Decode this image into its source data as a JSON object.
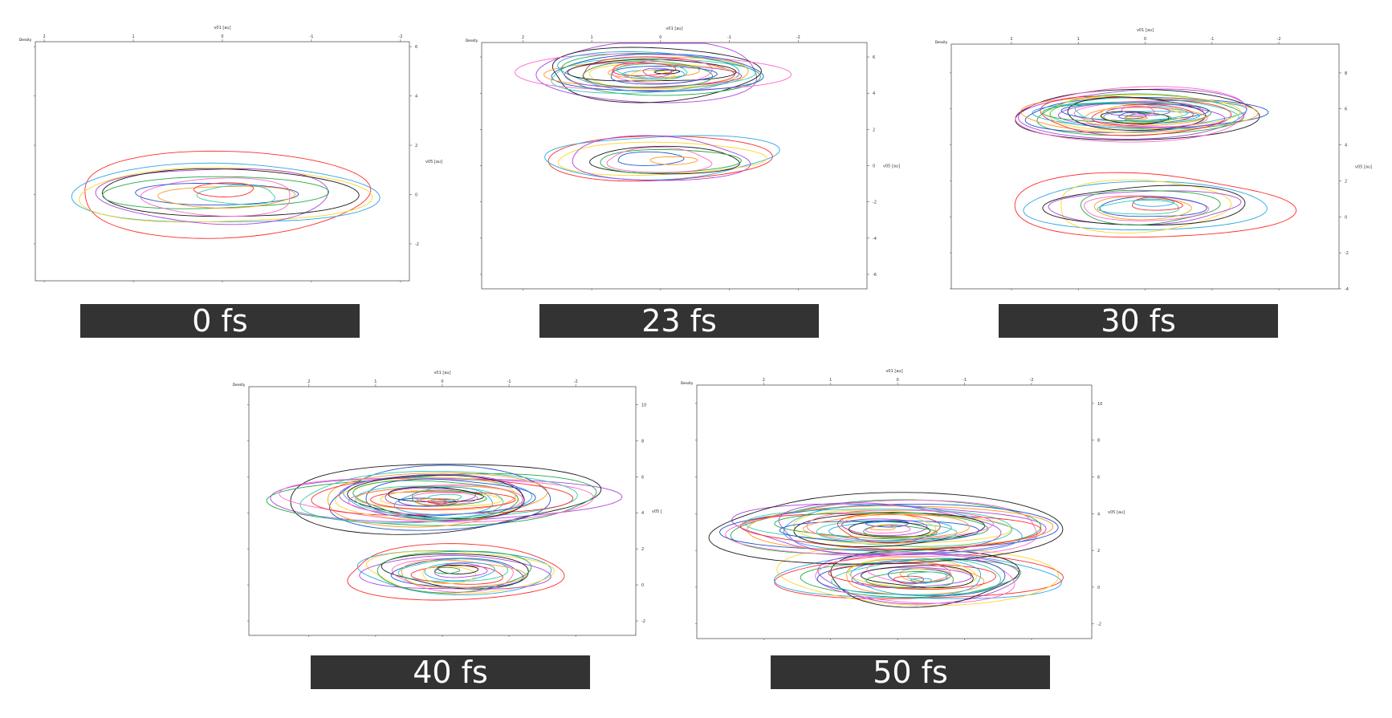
{
  "colors": [
    "#ff2a2a",
    "#2aa6e6",
    "#ffd42a",
    "#aa44dd",
    "#1a1a1a",
    "#22aa44",
    "#ff66cc",
    "#2255cc",
    "#ff9922",
    "#33ccaa"
  ],
  "chart_data": [
    {
      "type": "contour",
      "time_label": "0 fs",
      "corner_label": "Density",
      "xlabel": "v01 [au]",
      "ylabel": "v05 [au]",
      "xlim": [
        2.1,
        -2.1
      ],
      "ylim": [
        -3.5,
        6.2
      ],
      "x_ticks": [
        2,
        1,
        0,
        -1,
        -2
      ],
      "y_ticks": [
        -2,
        0,
        2,
        4,
        6
      ],
      "blobs": [
        {
          "cx": 0,
          "cy": 0,
          "rx": 1.9,
          "ry": 1.75,
          "levels": 11
        }
      ]
    },
    {
      "type": "contour",
      "time_label": "23 fs",
      "corner_label": "Density",
      "xlabel": "v01 [au]",
      "ylabel": "v05 [au]",
      "xlim": [
        2.6,
        -3.0
      ],
      "ylim": [
        -6.8,
        6.8
      ],
      "x_ticks": [
        2,
        1,
        0,
        -1,
        -2
      ],
      "y_ticks": [
        -6,
        -4,
        -2,
        0,
        2,
        4,
        6
      ],
      "blobs": [
        {
          "cx": 0,
          "cy": 0.4,
          "rx": 1.75,
          "ry": 1.7,
          "levels": 9
        },
        {
          "cx": 0.1,
          "cy": 5.1,
          "rx": 1.9,
          "ry": 1.7,
          "levels": 22
        }
      ]
    },
    {
      "type": "contour",
      "time_label": "30 fs",
      "corner_label": "Density",
      "xlabel": "v01 [au]",
      "ylabel": "v05 [au]",
      "xlim": [
        2.9,
        -2.9
      ],
      "ylim": [
        -4,
        9.6
      ],
      "x_ticks": [
        2,
        1,
        0,
        -1,
        -2
      ],
      "y_ticks": [
        -4,
        -2,
        0,
        2,
        4,
        6,
        8
      ],
      "blobs": [
        {
          "cx": 0,
          "cy": 0.6,
          "rx": 1.8,
          "ry": 1.8,
          "levels": 12
        },
        {
          "cx": 0.1,
          "cy": 5.7,
          "rx": 1.9,
          "ry": 1.7,
          "levels": 26
        }
      ]
    },
    {
      "type": "contour",
      "time_label": "40 fs",
      "corner_label": "Density",
      "xlabel": "v01 [au]",
      "ylabel": "v05 [",
      "xlim": [
        2.9,
        -2.9
      ],
      "ylim": [
        -2.8,
        11
      ],
      "x_ticks": [
        2,
        1,
        0,
        -1,
        -2
      ],
      "y_ticks": [
        -2,
        0,
        2,
        4,
        6,
        8,
        10
      ],
      "blobs": [
        {
          "cx": -0.2,
          "cy": 0.7,
          "rx": 1.6,
          "ry": 1.7,
          "levels": 16
        },
        {
          "cx": 0.1,
          "cy": 4.8,
          "rx": 2.3,
          "ry": 2.1,
          "levels": 28
        }
      ]
    },
    {
      "type": "contour",
      "time_label": "50 fs",
      "corner_label": "Density",
      "xlabel": "v01 [au]",
      "ylabel": "v05 [au]",
      "xlim": [
        3.0,
        -2.9
      ],
      "ylim": [
        -2.8,
        11
      ],
      "x_ticks": [
        2,
        1,
        0,
        -1,
        -2
      ],
      "y_ticks": [
        -2,
        0,
        2,
        4,
        6,
        8,
        10
      ],
      "blobs": [
        {
          "cx": -0.3,
          "cy": 0.6,
          "rx": 1.9,
          "ry": 1.9,
          "levels": 22
        },
        {
          "cx": 0.1,
          "cy": 3.2,
          "rx": 2.5,
          "ry": 2.1,
          "levels": 26
        }
      ]
    }
  ]
}
